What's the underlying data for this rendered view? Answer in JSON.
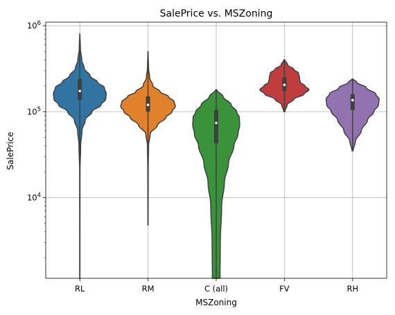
{
  "chart_data": {
    "type": "violin",
    "title": "SalePrice vs. MSZoning",
    "xlabel": "MSZoning",
    "ylabel": "SalePrice",
    "yscale": "log",
    "ylim": [
      1150,
      1100000
    ],
    "grid": true,
    "yticks": [
      {
        "value": 10000,
        "base": "10",
        "exp": "4"
      },
      {
        "value": 100000,
        "base": "10",
        "exp": "5"
      },
      {
        "value": 1000000,
        "base": "10",
        "exp": "6"
      }
    ],
    "categories": [
      "RL",
      "RM",
      "C (all)",
      "FV",
      "RH"
    ],
    "series": [
      {
        "category": "RL",
        "color": "#3274a1",
        "min": 1150,
        "max": 800000,
        "q1": 137000,
        "median": 174000,
        "q3": 240000,
        "profile": [
          [
            1150,
            0.004
          ],
          [
            20000,
            0.006
          ],
          [
            40000,
            0.03
          ],
          [
            60000,
            0.08
          ],
          [
            80000,
            0.2
          ],
          [
            100000,
            0.45
          ],
          [
            120000,
            0.78
          ],
          [
            140000,
            0.95
          ],
          [
            160000,
            0.97
          ],
          [
            190000,
            0.9
          ],
          [
            220000,
            0.65
          ],
          [
            260000,
            0.38
          ],
          [
            320000,
            0.16
          ],
          [
            400000,
            0.07
          ],
          [
            550000,
            0.02
          ],
          [
            800000,
            0.004
          ]
        ]
      },
      {
        "category": "RM",
        "color": "#e1812c",
        "min": 4800,
        "max": 500000,
        "q1": 100000,
        "median": 120000,
        "q3": 150000,
        "profile": [
          [
            4800,
            0.004
          ],
          [
            20000,
            0.008
          ],
          [
            40000,
            0.02
          ],
          [
            55000,
            0.08
          ],
          [
            70000,
            0.35
          ],
          [
            85000,
            0.65
          ],
          [
            100000,
            0.88
          ],
          [
            115000,
            1.0
          ],
          [
            130000,
            0.96
          ],
          [
            150000,
            0.75
          ],
          [
            170000,
            0.45
          ],
          [
            200000,
            0.18
          ],
          [
            250000,
            0.06
          ],
          [
            320000,
            0.02
          ],
          [
            500000,
            0.004
          ]
        ]
      },
      {
        "category": "C (all)",
        "color": "#3a923a",
        "min": 1150,
        "max": 180000,
        "q1": 43000,
        "median": 74000,
        "q3": 105000,
        "profile": [
          [
            1150,
            0.14
          ],
          [
            3000,
            0.15
          ],
          [
            8000,
            0.2
          ],
          [
            15000,
            0.3
          ],
          [
            25000,
            0.45
          ],
          [
            40000,
            0.65
          ],
          [
            55000,
            0.8
          ],
          [
            70000,
            0.86
          ],
          [
            85000,
            0.85
          ],
          [
            100000,
            0.75
          ],
          [
            120000,
            0.55
          ],
          [
            150000,
            0.25
          ],
          [
            180000,
            0.02
          ]
        ]
      },
      {
        "category": "FV",
        "color": "#c03d3e",
        "min": 100000,
        "max": 400000,
        "q1": 173000,
        "median": 205000,
        "q3": 250000,
        "profile": [
          [
            100000,
            0.02
          ],
          [
            120000,
            0.1
          ],
          [
            140000,
            0.35
          ],
          [
            160000,
            0.72
          ],
          [
            180000,
            0.9
          ],
          [
            200000,
            0.75
          ],
          [
            220000,
            0.58
          ],
          [
            250000,
            0.55
          ],
          [
            280000,
            0.52
          ],
          [
            310000,
            0.35
          ],
          [
            350000,
            0.12
          ],
          [
            400000,
            0.02
          ]
        ]
      },
      {
        "category": "RH",
        "color": "#9372b2",
        "min": 35000,
        "max": 240000,
        "q1": 105000,
        "median": 136000,
        "q3": 160000,
        "profile": [
          [
            35000,
            0.02
          ],
          [
            45000,
            0.1
          ],
          [
            60000,
            0.32
          ],
          [
            80000,
            0.55
          ],
          [
            100000,
            0.78
          ],
          [
            120000,
            0.95
          ],
          [
            140000,
            0.97
          ],
          [
            160000,
            0.85
          ],
          [
            190000,
            0.5
          ],
          [
            220000,
            0.15
          ],
          [
            240000,
            0.02
          ]
        ]
      }
    ]
  }
}
